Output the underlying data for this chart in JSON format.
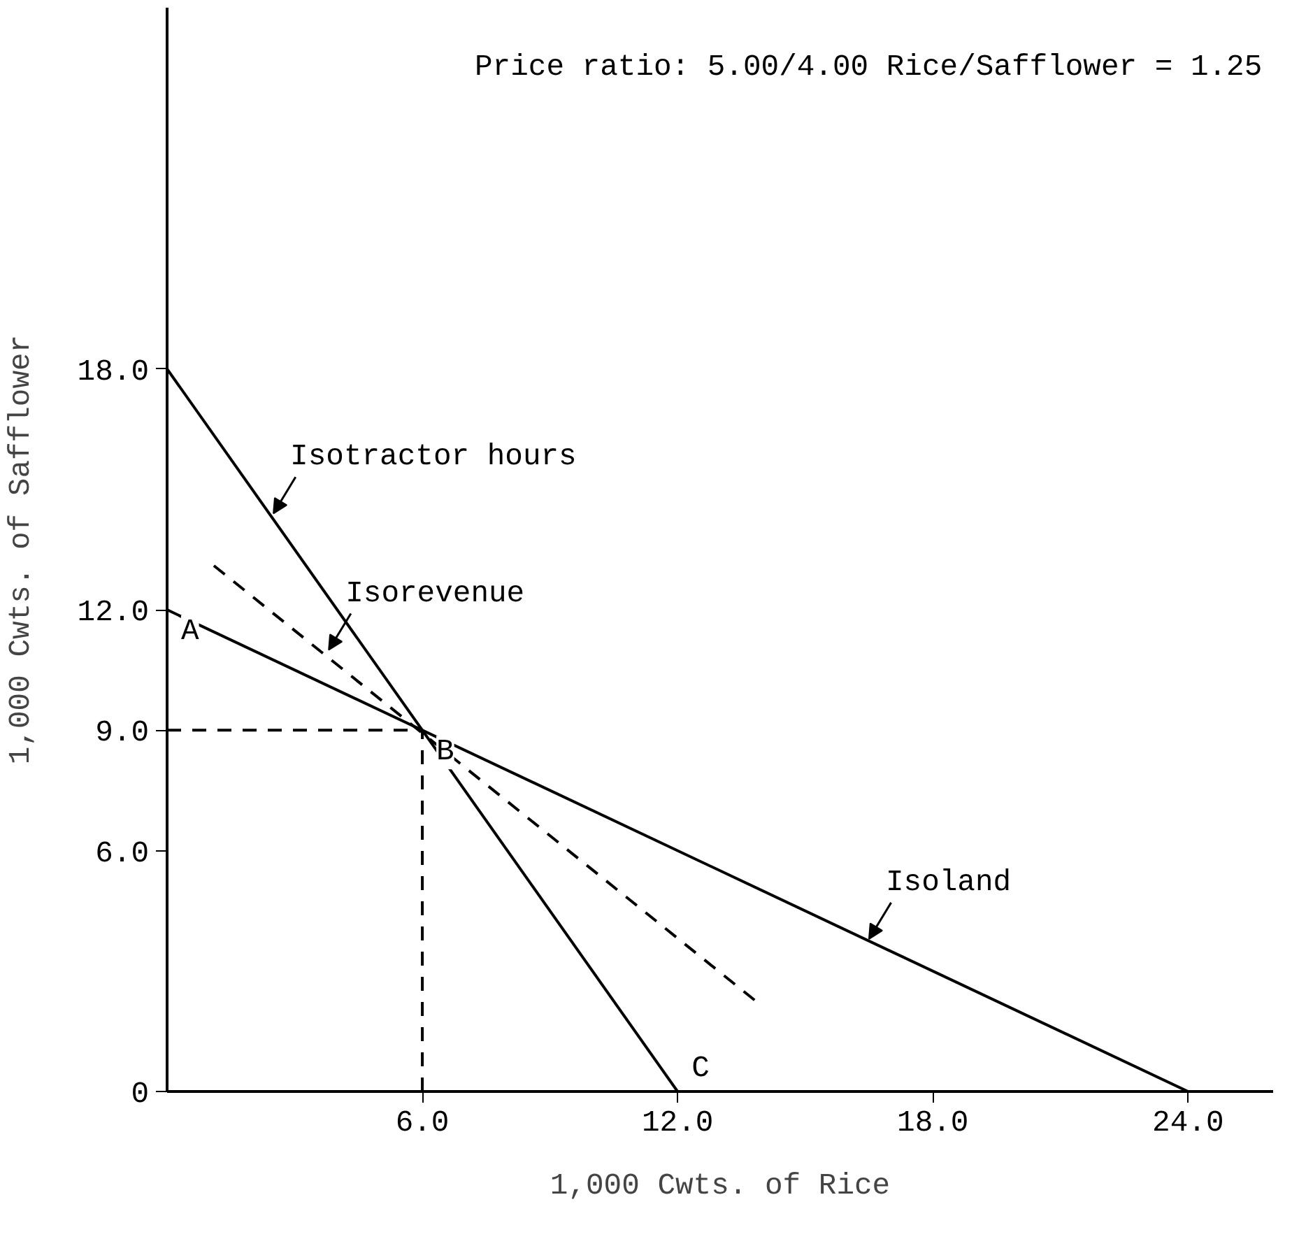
{
  "chart_data": {
    "type": "line",
    "xlabel": "1,000 Cwts. of Rice",
    "ylabel": "1,000 Cwts. of Safflower",
    "xlim": [
      0,
      26
    ],
    "ylim": [
      0,
      27
    ],
    "xticks": [
      {
        "value": 6,
        "label": "6.0"
      },
      {
        "value": 12,
        "label": "12.0"
      },
      {
        "value": 18,
        "label": "18.0"
      },
      {
        "value": 24,
        "label": "24.0"
      }
    ],
    "yticks": [
      0,
      {
        "value": 6,
        "label": "6.0"
      },
      {
        "value": 9,
        "label": "9.0"
      },
      {
        "value": 12,
        "label": "12.0"
      },
      {
        "value": 18,
        "label": "18.0"
      }
    ],
    "grid": false,
    "marker": "none",
    "series": [
      {
        "color": "#000000",
        "x": [
          0,
          12
        ],
        "values": [
          18,
          0
        ],
        "line_style": "solid"
      },
      {
        "color": "#000000",
        "x": [
          0,
          24
        ],
        "values": [
          12,
          0
        ],
        "line_style": "solid"
      },
      {
        "color": "#000000",
        "x": [
          1.1,
          13.9
        ],
        "values": [
          13.1,
          2.2
        ],
        "line_style": "dashed"
      },
      {
        "color": "#000000",
        "x": [
          0,
          6
        ],
        "values": [
          9,
          9
        ],
        "line_style": "dashed"
      },
      {
        "color": "#000000",
        "x": [
          6,
          6
        ],
        "values": [
          0,
          9
        ],
        "line_style": "dashed"
      }
    ],
    "annotations": [
      "Price ratio:  5.00/4.00 Rice/Safflower = 1.25",
      {
        "text": "Isotractor hours",
        "x": 2.5,
        "y": 14.4
      },
      {
        "text": "Isorevenue",
        "x": 3.8,
        "y": 11.0
      },
      {
        "text": "Isoland",
        "x": 16.5,
        "y": 3.8
      },
      {
        "text": "A",
        "x": 0,
        "y": 12
      },
      {
        "text": "B",
        "x": 6,
        "y": 9
      },
      {
        "text": "C",
        "x": 12,
        "y": 0
      }
    ]
  }
}
